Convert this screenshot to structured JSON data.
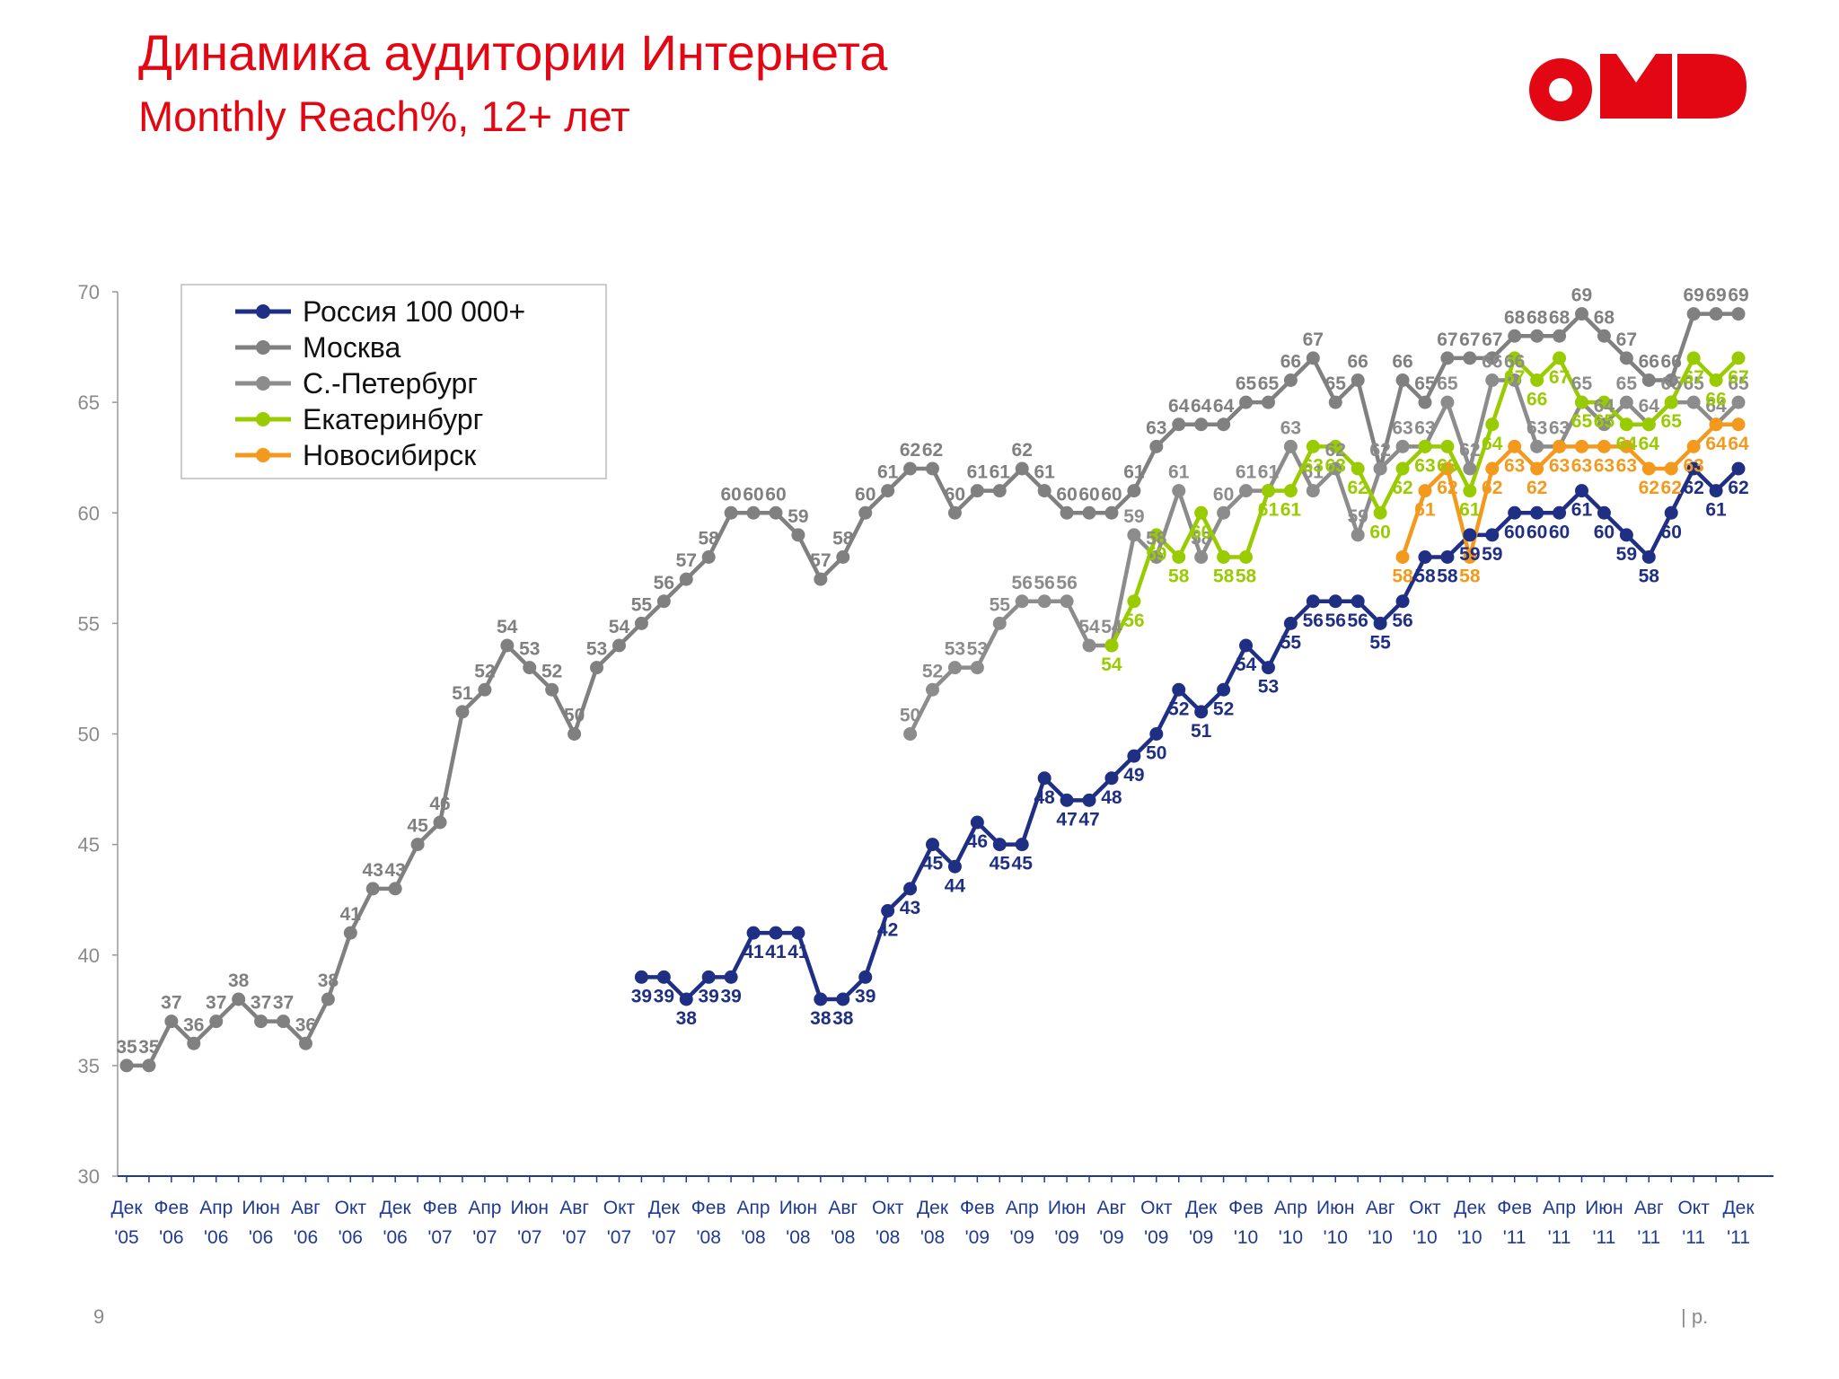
{
  "chart_data": {
    "type": "line",
    "title": "Динамика аудитории Интернета",
    "subtitle": "Monthly Reach%, 12+ лет",
    "page_number": "9",
    "footer": "| p.",
    "ylim": [
      30,
      70
    ],
    "yticks": [
      30,
      35,
      40,
      45,
      50,
      55,
      60,
      65,
      70
    ],
    "legend": "upper left",
    "categories": [
      "Дек '05",
      null,
      "Фев '06",
      null,
      "Апр '06",
      null,
      "Июн '06",
      null,
      "Авг '06",
      null,
      "Окт '06",
      null,
      "Дек '06",
      null,
      "Фев '07",
      null,
      "Апр '07",
      null,
      "Июн '07",
      null,
      "Авг '07",
      null,
      "Окт '07",
      null,
      "Дек '07",
      null,
      "Фев '08",
      null,
      "Апр '08",
      null,
      "Июн '08",
      null,
      "Авг '08",
      null,
      "Окт '08",
      null,
      "Дек '08",
      null,
      "Фев '09",
      null,
      "Апр '09",
      null,
      "Июн '09",
      null,
      "Авг '09",
      null,
      "Окт '09",
      null,
      "Дек '09",
      null,
      "Фев '10",
      null,
      "Апр '10",
      null,
      "Июн '10",
      null,
      "Авг '10",
      null,
      "Окт '10",
      null,
      "Дек '10",
      null,
      "Фев '11",
      null,
      "Апр '11",
      null,
      "Июн '11",
      null,
      "Авг '11",
      null,
      "Окт '11",
      null,
      "Дек '11"
    ],
    "series": [
      {
        "name": "Россия 100 000+",
        "color": "#1f2f84",
        "label_pos": "below",
        "values": [
          null,
          null,
          null,
          null,
          null,
          null,
          null,
          null,
          null,
          null,
          null,
          null,
          null,
          null,
          null,
          null,
          null,
          null,
          null,
          null,
          null,
          null,
          null,
          39,
          39,
          38,
          39,
          39,
          41,
          41,
          41,
          38,
          38,
          39,
          42,
          43,
          45,
          44,
          46,
          45,
          45,
          48,
          47,
          47,
          48,
          49,
          50,
          52,
          51,
          52,
          54,
          53,
          55,
          56,
          56,
          56,
          55,
          56,
          58,
          58,
          59,
          59,
          60,
          60,
          60,
          61,
          60,
          59,
          58,
          60,
          62,
          61,
          62
        ]
      },
      {
        "name": "Москва",
        "color": "#808080",
        "label_pos": "above",
        "values": [
          35,
          35,
          37,
          36,
          37,
          38,
          37,
          37,
          36,
          38,
          41,
          43,
          43,
          45,
          46,
          51,
          52,
          54,
          53,
          52,
          50,
          53,
          54,
          55,
          56,
          57,
          58,
          60,
          60,
          60,
          59,
          57,
          58,
          60,
          61,
          62,
          62,
          60,
          61,
          61,
          62,
          61,
          60,
          60,
          60,
          61,
          63,
          64,
          64,
          64,
          65,
          65,
          66,
          67,
          65,
          66,
          62,
          66,
          65,
          67,
          67,
          67,
          68,
          68,
          68,
          69,
          68,
          67,
          66,
          66,
          69,
          69,
          69
        ]
      },
      {
        "name": "С.-Петербург",
        "color": "#8c8c8c",
        "label_pos": "above",
        "values": [
          null,
          null,
          null,
          null,
          null,
          null,
          null,
          null,
          null,
          null,
          null,
          null,
          null,
          null,
          null,
          null,
          null,
          null,
          null,
          null,
          null,
          null,
          null,
          null,
          null,
          null,
          null,
          null,
          null,
          null,
          null,
          null,
          null,
          null,
          null,
          50,
          52,
          53,
          53,
          55,
          56,
          56,
          56,
          54,
          54,
          59,
          58,
          61,
          58,
          60,
          61,
          61,
          63,
          61,
          62,
          59,
          62,
          63,
          63,
          65,
          62,
          66,
          66,
          63,
          63,
          65,
          64,
          65,
          64,
          65,
          65,
          64,
          65
        ]
      },
      {
        "name": "Екатеринбург",
        "color": "#99cc00",
        "label_pos": "below",
        "values": [
          null,
          null,
          null,
          null,
          null,
          null,
          null,
          null,
          null,
          null,
          null,
          null,
          null,
          null,
          null,
          null,
          null,
          null,
          null,
          null,
          null,
          null,
          null,
          null,
          null,
          null,
          null,
          null,
          null,
          null,
          null,
          null,
          null,
          null,
          null,
          null,
          null,
          null,
          null,
          null,
          null,
          null,
          null,
          null,
          54,
          56,
          59,
          58,
          60,
          58,
          58,
          61,
          61,
          63,
          63,
          62,
          60,
          62,
          63,
          63,
          61,
          64,
          67,
          66,
          67,
          65,
          65,
          64,
          64,
          65,
          67,
          66,
          67
        ]
      },
      {
        "name": "Новосибирск",
        "color": "#f39a1e",
        "label_pos": "below",
        "values": [
          null,
          null,
          null,
          null,
          null,
          null,
          null,
          null,
          null,
          null,
          null,
          null,
          null,
          null,
          null,
          null,
          null,
          null,
          null,
          null,
          null,
          null,
          null,
          null,
          null,
          null,
          null,
          null,
          null,
          null,
          null,
          null,
          null,
          null,
          null,
          null,
          null,
          null,
          null,
          null,
          null,
          null,
          null,
          null,
          null,
          null,
          null,
          null,
          null,
          null,
          null,
          null,
          null,
          null,
          null,
          null,
          null,
          58,
          61,
          62,
          58,
          62,
          63,
          62,
          63,
          63,
          63,
          63,
          62,
          62,
          63,
          64,
          64
        ]
      }
    ]
  }
}
